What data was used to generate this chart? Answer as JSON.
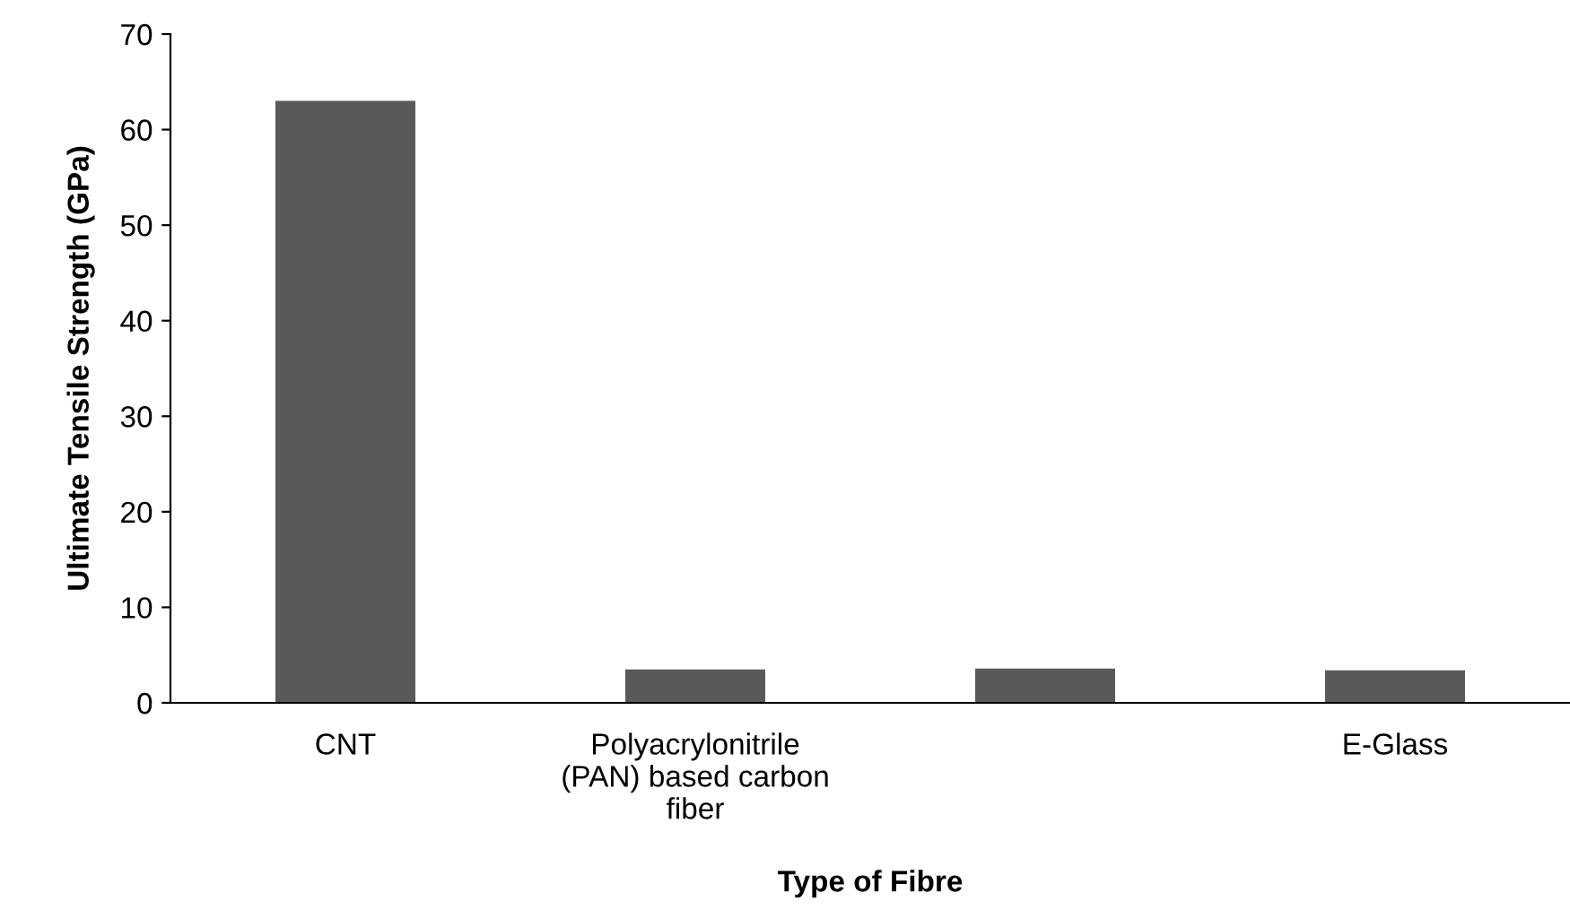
{
  "chart_data": {
    "type": "bar",
    "xlabel": "Type of Fibre",
    "ylabel": "Ultimate Tensile Strength (GPa)",
    "categories": [
      "CNT",
      "Polyacrylonitrile\n(PAN) based carbon\nfiber",
      null,
      "E-Glass"
    ],
    "values": [
      63,
      3.5,
      3.6,
      3.4
    ],
    "color": "#595959",
    "ylim": [
      0,
      70
    ],
    "yticks": [
      0,
      10,
      20,
      30,
      40,
      50,
      60,
      70
    ],
    "grid": false,
    "legend": false
  }
}
